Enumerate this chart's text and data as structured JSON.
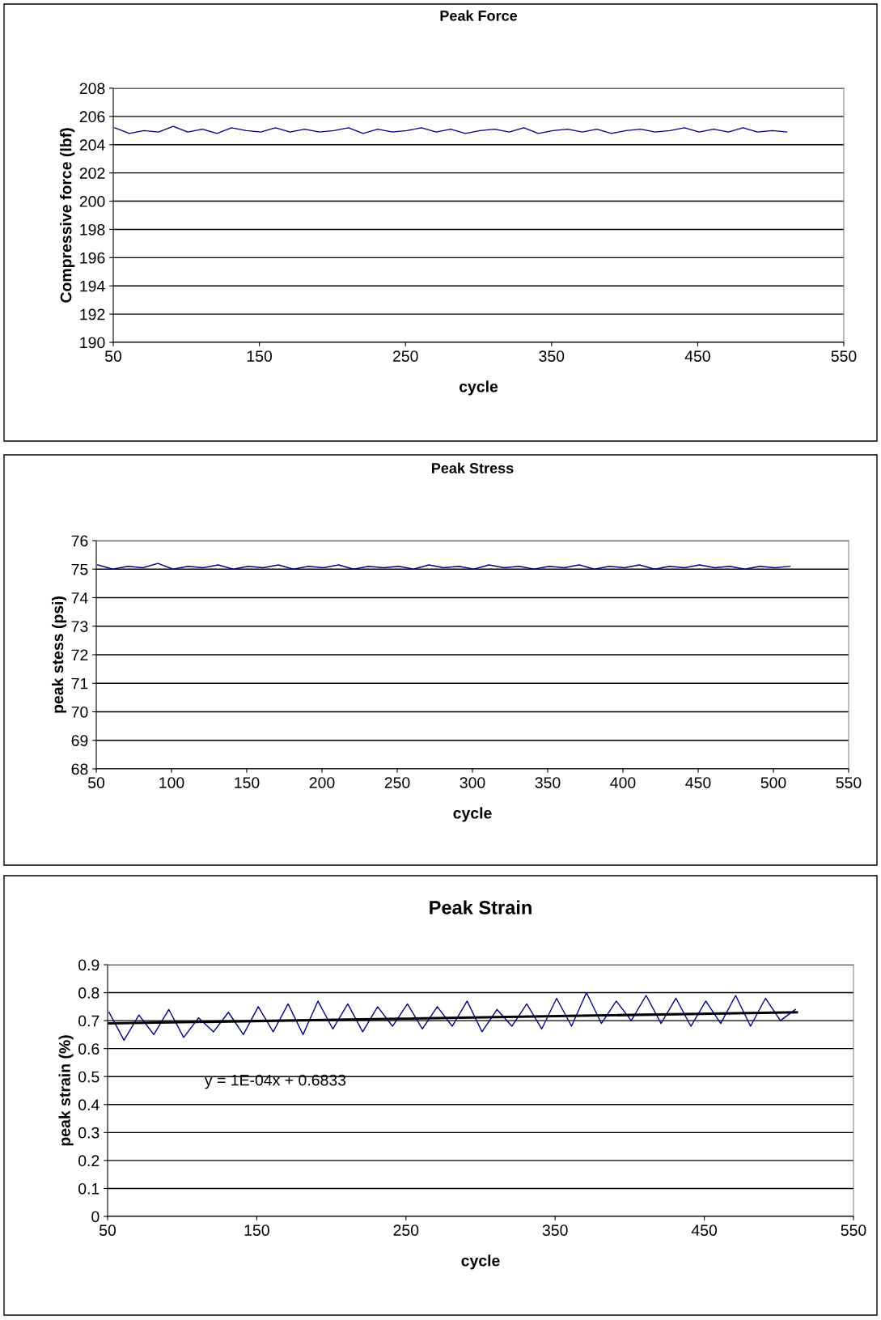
{
  "chart_data": [
    {
      "type": "line",
      "title": "Peak Force",
      "xlabel": "cycle",
      "ylabel": "Compressive force (lbf)",
      "xlim": [
        50,
        550
      ],
      "xticks": [
        50,
        150,
        250,
        350,
        450,
        550
      ],
      "ylim": [
        190,
        208
      ],
      "yticks": [
        190,
        192,
        194,
        196,
        198,
        200,
        202,
        204,
        206,
        208
      ],
      "grid": "y",
      "series": [
        {
          "color": "#000080",
          "x": [
            51,
            61,
            71,
            81,
            91,
            101,
            111,
            121,
            131,
            141,
            151,
            161,
            171,
            181,
            191,
            201,
            211,
            221,
            231,
            241,
            251,
            261,
            271,
            281,
            291,
            301,
            311,
            321,
            331,
            341,
            351,
            361,
            371,
            381,
            391,
            401,
            411,
            421,
            431,
            441,
            451,
            461,
            471,
            481,
            491,
            501,
            511
          ],
          "values": [
            205.2,
            204.8,
            205.0,
            204.9,
            205.3,
            204.9,
            205.1,
            204.8,
            205.2,
            205.0,
            204.9,
            205.2,
            204.9,
            205.1,
            204.9,
            205.0,
            205.2,
            204.8,
            205.1,
            204.9,
            205.0,
            205.2,
            204.9,
            205.1,
            204.8,
            205.0,
            205.1,
            204.9,
            205.2,
            204.8,
            205.0,
            205.1,
            204.9,
            205.1,
            204.8,
            205.0,
            205.1,
            204.9,
            205.0,
            205.2,
            204.9,
            205.1,
            204.9,
            205.2,
            204.9,
            205.0,
            204.9
          ]
        }
      ]
    },
    {
      "type": "line",
      "title": "Peak Stress",
      "xlabel": "cycle",
      "ylabel": "peak stess (psi)",
      "xlim": [
        50,
        550
      ],
      "xticks": [
        50,
        100,
        150,
        200,
        250,
        300,
        350,
        400,
        450,
        500,
        550
      ],
      "ylim": [
        68,
        76
      ],
      "yticks": [
        68,
        69,
        70,
        71,
        72,
        73,
        74,
        75,
        76
      ],
      "grid": "y",
      "series": [
        {
          "color": "#000080",
          "x": [
            51,
            61,
            71,
            81,
            91,
            101,
            111,
            121,
            131,
            141,
            151,
            161,
            171,
            181,
            191,
            201,
            211,
            221,
            231,
            241,
            251,
            261,
            271,
            281,
            291,
            301,
            311,
            321,
            331,
            341,
            351,
            361,
            371,
            381,
            391,
            401,
            411,
            421,
            431,
            441,
            451,
            461,
            471,
            481,
            491,
            501,
            511
          ],
          "values": [
            75.15,
            75.0,
            75.1,
            75.05,
            75.2,
            75.0,
            75.1,
            75.05,
            75.15,
            75.0,
            75.1,
            75.05,
            75.15,
            75.0,
            75.1,
            75.05,
            75.15,
            75.0,
            75.1,
            75.05,
            75.1,
            75.0,
            75.15,
            75.05,
            75.1,
            75.0,
            75.15,
            75.05,
            75.1,
            75.0,
            75.1,
            75.05,
            75.15,
            75.0,
            75.1,
            75.05,
            75.15,
            75.0,
            75.1,
            75.05,
            75.15,
            75.05,
            75.1,
            75.0,
            75.1,
            75.05,
            75.1
          ]
        }
      ]
    },
    {
      "type": "line",
      "title": "Peak Strain",
      "xlabel": "cycle",
      "ylabel": "peak strain (%)",
      "xlim": [
        50,
        550
      ],
      "xticks": [
        50,
        150,
        250,
        350,
        450,
        550
      ],
      "ylim": [
        0,
        0.9
      ],
      "yticks": [
        0,
        0.1,
        0.2,
        0.3,
        0.4,
        0.5,
        0.6,
        0.7,
        0.8,
        0.9
      ],
      "grid": "y",
      "annotations": [
        "y = 1E-04x + 0.6833"
      ],
      "series": [
        {
          "color": "#000080",
          "x": [
            51,
            61,
            71,
            81,
            91,
            101,
            111,
            121,
            131,
            141,
            151,
            161,
            171,
            181,
            191,
            201,
            211,
            221,
            231,
            241,
            251,
            261,
            271,
            281,
            291,
            301,
            311,
            321,
            331,
            341,
            351,
            361,
            371,
            381,
            391,
            401,
            411,
            421,
            431,
            441,
            451,
            461,
            471,
            481,
            491,
            501,
            511
          ],
          "values": [
            0.73,
            0.63,
            0.72,
            0.65,
            0.74,
            0.64,
            0.71,
            0.66,
            0.73,
            0.65,
            0.75,
            0.66,
            0.76,
            0.65,
            0.77,
            0.67,
            0.76,
            0.66,
            0.75,
            0.68,
            0.76,
            0.67,
            0.75,
            0.68,
            0.77,
            0.66,
            0.74,
            0.68,
            0.76,
            0.67,
            0.78,
            0.68,
            0.8,
            0.69,
            0.77,
            0.7,
            0.79,
            0.69,
            0.78,
            0.68,
            0.77,
            0.69,
            0.79,
            0.68,
            0.78,
            0.7,
            0.74
          ]
        },
        {
          "type": "line",
          "color": "#000000",
          "x": [
            51,
            512
          ],
          "values": [
            0.69,
            0.73
          ]
        }
      ]
    }
  ]
}
